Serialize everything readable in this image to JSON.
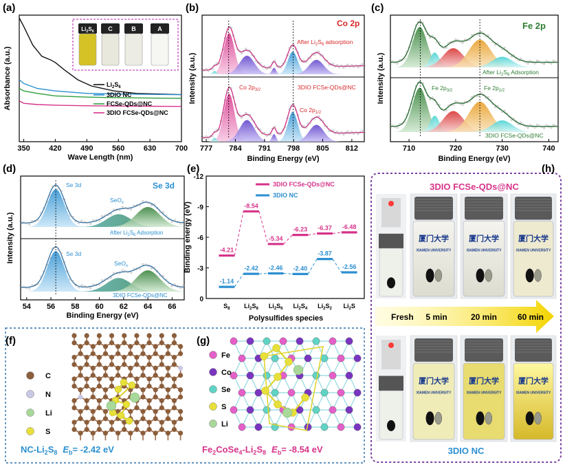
{
  "panel_labels": [
    "(a)",
    "(b)",
    "(c)",
    "(d)",
    "(e)",
    "(f)",
    "(g)",
    "(h)"
  ],
  "colors": {
    "accent_magenta": "#d6338a",
    "accent_blue": "#2b8fd0",
    "green_dark": "#2e7d32",
    "axis": "#000000",
    "dotted_border": "#5a5aa0",
    "purple_border": "#7a3fa0",
    "arrow_yellow": "#f4d400"
  },
  "chart_data": [
    {
      "panel": "(a)",
      "type": "line",
      "xlabel": "Wave Length (nm)",
      "ylabel": "Absorbance (a.u.)",
      "xlim": [
        340,
        700
      ],
      "xticks": [
        350,
        420,
        490,
        560,
        630,
        700
      ],
      "inset_labels": [
        "Li2S6",
        "C",
        "B",
        "A"
      ],
      "series": [
        {
          "name": "Li2S6",
          "label_main": "Li",
          "sub1": "2",
          "mid": "S",
          "sub2": "6",
          "color": "#111111",
          "x": [
            340,
            350,
            370,
            390,
            410,
            420,
            440,
            470,
            500,
            550,
            600,
            650,
            700
          ],
          "y": [
            1.0,
            0.93,
            0.78,
            0.69,
            0.66,
            0.64,
            0.58,
            0.5,
            0.45,
            0.41,
            0.39,
            0.385,
            0.38
          ]
        },
        {
          "name": "3DIO NC",
          "color": "#2b8fd0",
          "x": [
            340,
            350,
            380,
            420,
            490,
            560,
            630,
            700
          ],
          "y": [
            0.5,
            0.47,
            0.43,
            0.41,
            0.39,
            0.385,
            0.382,
            0.38
          ]
        },
        {
          "name": "FCSe-QDs@NC",
          "color": "#2e9e3e",
          "x": [
            340,
            350,
            380,
            420,
            490,
            560,
            630,
            700
          ],
          "y": [
            0.43,
            0.41,
            0.39,
            0.37,
            0.36,
            0.355,
            0.352,
            0.35
          ]
        },
        {
          "name": "3DIO FCSe-QDs@NC",
          "color": "#d6338a",
          "x": [
            340,
            350,
            380,
            420,
            490,
            560,
            630,
            700
          ],
          "y": [
            0.33,
            0.31,
            0.3,
            0.295,
            0.29,
            0.288,
            0.286,
            0.285
          ]
        }
      ]
    },
    {
      "panel": "(b)",
      "type": "line",
      "title": "Co 2p",
      "xlabel": "Binding Energy (eV)",
      "ylabel": "Intensity (a.u.)",
      "xlim": [
        776,
        815
      ],
      "xticks": [
        777,
        784,
        791,
        798,
        805,
        812
      ],
      "annotations": [
        "After Li2S6 adsorption",
        "3DIO FCSe-QDs@NC",
        "Co 2p3/2",
        "Co 2p1/2"
      ],
      "peaks_eV": [
        782.5,
        786.5,
        793.5,
        797.8,
        803.5
      ]
    },
    {
      "panel": "(c)",
      "type": "line",
      "title": "Fe 2p",
      "xlabel": "Binding Energy (eV)",
      "ylabel": "Intensity (a.u.)",
      "xlim": [
        706,
        742
      ],
      "xticks": [
        710,
        720,
        730,
        740
      ],
      "annotations": [
        "After Li2S6 Adsorption",
        "3DIO FCSe-QDs@NC",
        "Fe 2p3/2",
        "Fe 2p1/2"
      ],
      "peaks_eV": [
        712.3,
        715.5,
        719.0,
        725.2
      ]
    },
    {
      "panel": "(d)",
      "type": "line",
      "title": "Se 3d",
      "xlabel": "Binding Energy (eV)",
      "ylabel": "Intensity (a.u.)",
      "xlim": [
        53.5,
        67
      ],
      "xticks": [
        54,
        56,
        58,
        60,
        62,
        64,
        66
      ],
      "annotations": [
        "After Li2S6 Adsorption",
        "3DIO FCSe-QDs@NC",
        "Se 3d",
        "SeOx"
      ],
      "peaks_eV": [
        56.5,
        61.5,
        64.0
      ]
    },
    {
      "panel": "(e)",
      "type": "scatter",
      "xlabel": "Polysulfides species",
      "ylabel": "Binding energy (eV)",
      "ylim": [
        0,
        -12
      ],
      "yticks": [
        0,
        -3,
        -6,
        -9,
        -12
      ],
      "categories": [
        "S8",
        "Li2S8",
        "Li2S6",
        "Li2S4",
        "Li2S2",
        "Li2S"
      ],
      "series": [
        {
          "name": "3DIO FCSe-QDs@NC",
          "color": "#d6338a",
          "values": [
            -4.21,
            -8.54,
            -5.34,
            -6.23,
            -6.37,
            -6.48
          ],
          "labels": [
            "-4.21",
            "-8.54",
            "-5.34",
            "-6.23",
            "-6.37",
            "-6.48"
          ]
        },
        {
          "name": "3DIO NC",
          "color": "#2b8fd0",
          "values": [
            -1.14,
            -2.42,
            -2.46,
            -2.4,
            -3.87,
            -2.56
          ],
          "labels": [
            "-1.14",
            "-2.42",
            "-2.46",
            "-2.40",
            "-3.87",
            "-2.56"
          ]
        }
      ]
    }
  ],
  "panel_f": {
    "legend": [
      {
        "sym": "C",
        "color": "#8b5e3c"
      },
      {
        "sym": "N",
        "color": "#c9c9e6"
      },
      {
        "sym": "Li",
        "color": "#a8d89a"
      },
      {
        "sym": "S",
        "color": "#e8e03a"
      }
    ],
    "caption_main": "NC-Li",
    "caption_sub": "2",
    "caption_s": "S",
    "caption_sub2": "8",
    "caption_eb": "E",
    "caption_eb_sub": "b",
    "caption_val": "= -2.42 eV"
  },
  "panel_g": {
    "legend": [
      {
        "sym": "Fe",
        "color": "#e55fc8"
      },
      {
        "sym": "Co",
        "color": "#7a35c0"
      },
      {
        "sym": "Se",
        "color": "#5fd4c4"
      },
      {
        "sym": "S",
        "color": "#e8e03a"
      },
      {
        "sym": "Li",
        "color": "#a8d89a"
      }
    ],
    "caption_main": "Fe",
    "caption_sub": "2",
    "caption_mid": "CoSe",
    "caption_sub2": "4",
    "caption_li": "-Li",
    "caption_sub3": "2",
    "caption_s": "S",
    "caption_sub4": "8",
    "caption_eb": "E",
    "caption_eb_sub": "b",
    "caption_val": "= -8.54 eV"
  },
  "panel_h": {
    "top_title": "3DIO FCSe-QDs@NC",
    "bottom_title": "3DIO NC",
    "times": [
      "Fresh",
      "5 min",
      "20 min",
      "60 min"
    ],
    "vial_text_1": "厦门大学",
    "vial_text_2": "XIAMEN UNIVERSITY"
  }
}
